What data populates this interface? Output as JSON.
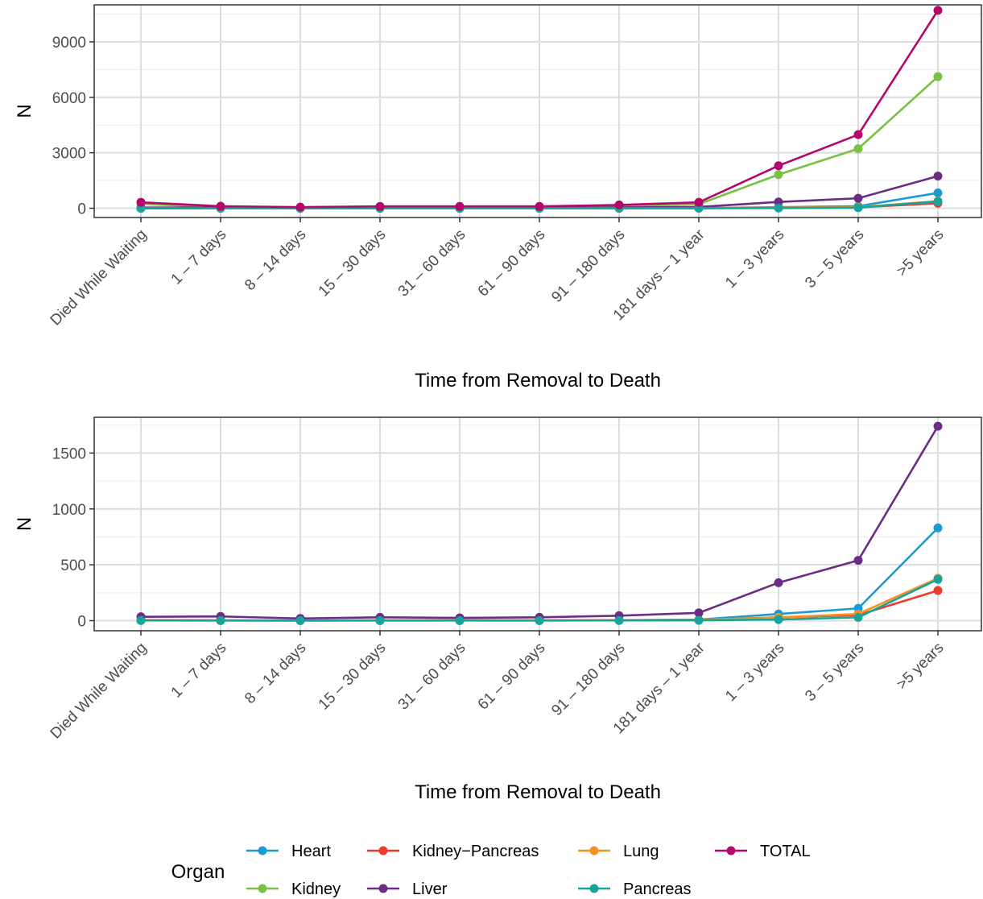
{
  "colors": {
    "Heart": "#1b9ad6",
    "Kidney": "#7ac143",
    "Kidney−Pancreas": "#ee3b2c",
    "Liver": "#6b2d83",
    "Lung": "#f39422",
    "Pancreas": "#15a59c",
    "TOTAL": "#b5076b"
  },
  "legend": {
    "title": "Organ",
    "entries": [
      "Heart",
      "Kidney−Pancreas",
      "Lung",
      "TOTAL",
      "Kidney",
      "Liver",
      "Pancreas"
    ]
  },
  "chart_data": [
    {
      "type": "line",
      "xlabel": "Time from Removal to Death",
      "ylabel": "N",
      "ylim": [
        -500,
        11000
      ],
      "yticks": [
        0,
        3000,
        6000,
        9000
      ],
      "ytick_labels": [
        "0",
        "3000",
        "6000",
        "9000"
      ],
      "grid": true,
      "categories": [
        "Died While Waiting",
        "1 – 7 days",
        "8 – 14 days",
        "15 – 30 days",
        "31 – 60 days",
        "61 – 90 days",
        "91 – 180 days",
        "181 days – 1 year",
        "1 – 3 years",
        "3 – 5 years",
        ">5 years"
      ],
      "series": [
        {
          "name": "Heart",
          "values": [
            5,
            3,
            2,
            3,
            3,
            3,
            5,
            10,
            60,
            110,
            830
          ]
        },
        {
          "name": "Kidney",
          "values": [
            230,
            60,
            30,
            55,
            60,
            60,
            120,
            220,
            1820,
            3220,
            7120
          ]
        },
        {
          "name": "Kidney−Pancreas",
          "values": [
            5,
            2,
            1,
            2,
            2,
            2,
            3,
            5,
            30,
            50,
            270
          ]
        },
        {
          "name": "Lung",
          "values": [
            3,
            2,
            1,
            2,
            2,
            2,
            3,
            8,
            30,
            60,
            380
          ]
        },
        {
          "name": "Liver",
          "values": [
            35,
            38,
            20,
            30,
            25,
            30,
            45,
            70,
            340,
            540,
            1740
          ]
        },
        {
          "name": "Pancreas",
          "values": [
            2,
            1,
            1,
            1,
            1,
            1,
            2,
            4,
            10,
            30,
            370
          ]
        },
        {
          "name": "TOTAL",
          "values": [
            320,
            110,
            60,
            100,
            100,
            100,
            180,
            320,
            2300,
            3980,
            10700
          ]
        }
      ]
    },
    {
      "type": "line",
      "xlabel": "Time from Removal to Death",
      "ylabel": "N",
      "ylim": [
        -90,
        1820
      ],
      "yticks": [
        0,
        500,
        1000,
        1500
      ],
      "ytick_labels": [
        "0",
        "500",
        "1000",
        "1500"
      ],
      "grid": true,
      "categories": [
        "Died While Waiting",
        "1 – 7 days",
        "8 – 14 days",
        "15 – 30 days",
        "31 – 60 days",
        "61 – 90 days",
        "91 – 180 days",
        "181 days – 1 year",
        "1 – 3 years",
        "3 – 5 years",
        ">5 years"
      ],
      "series": [
        {
          "name": "Heart",
          "values": [
            5,
            3,
            2,
            3,
            3,
            3,
            5,
            10,
            60,
            110,
            830
          ]
        },
        {
          "name": "Kidney−Pancreas",
          "values": [
            5,
            2,
            1,
            2,
            2,
            2,
            3,
            5,
            30,
            50,
            270
          ]
        },
        {
          "name": "Lung",
          "values": [
            3,
            2,
            1,
            2,
            2,
            2,
            3,
            8,
            30,
            60,
            380
          ]
        },
        {
          "name": "Liver",
          "values": [
            35,
            38,
            20,
            30,
            25,
            30,
            45,
            70,
            340,
            540,
            1740
          ]
        },
        {
          "name": "Pancreas",
          "values": [
            2,
            1,
            1,
            1,
            1,
            1,
            2,
            4,
            10,
            30,
            370
          ]
        }
      ]
    }
  ]
}
